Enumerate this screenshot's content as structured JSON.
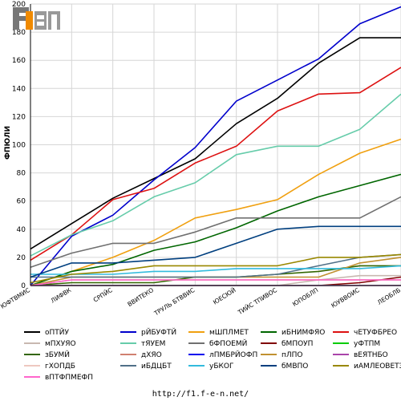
{
  "chart_data": {
    "type": "line",
    "title": "",
    "xlabel": "",
    "ylabel": "ФПЮЛИ",
    "ylim": [
      0,
      200
    ],
    "yticks": [
      0,
      20,
      40,
      60,
      80,
      100,
      120,
      140,
      160,
      180,
      200
    ],
    "grid": true,
    "legend_position": "bottom",
    "categories": [
      "ЮФТВМИС",
      "ЛИФВК",
      "СРПЙС",
      "ВВИТЕКО",
      "ТРУЛЬ БТВВИС",
      "ЮЕСЮЙ",
      "ТИЙС ТПИВОС",
      "ЮПОБЛП",
      "ЮУВВОИС",
      "ЛЕОБЛБ"
    ],
    "series": [
      {
        "name": "оПТЙУ",
        "color": "#000000",
        "values": [
          26,
          44,
          62,
          76,
          90,
          115,
          133,
          158,
          176,
          176
        ]
      },
      {
        "name": "рЙБУФТЙ",
        "color": "#0000cc",
        "values": [
          0,
          35,
          50,
          75,
          98,
          131,
          146,
          161,
          186,
          198
        ]
      },
      {
        "name": "мШПЛМЕТ",
        "color": "#f0a010",
        "values": [
          0,
          10,
          20,
          32,
          48,
          54,
          61,
          79,
          94,
          104
        ]
      },
      {
        "name": "иБНИМФЯО",
        "color": "#006600",
        "values": [
          0,
          10,
          15,
          25,
          31,
          41,
          53,
          63,
          71,
          79
        ]
      },
      {
        "name": "чЕТУФБРЕО",
        "color": "#dd1111",
        "values": [
          18,
          36,
          61,
          69,
          87,
          99,
          124,
          136,
          137,
          155
        ]
      },
      {
        "name": "мПХУЯО",
        "color": "#c8b8b0",
        "values": [
          0,
          0,
          0,
          0,
          0,
          0,
          0,
          4,
          7,
          7
        ]
      },
      {
        "name": "тЯУЕМ",
        "color": "#66ccaa",
        "values": [
          21,
          36,
          46,
          63,
          73,
          93,
          99,
          99,
          111,
          136
        ]
      },
      {
        "name": "бФПОЕМЙ",
        "color": "#707070",
        "values": [
          13,
          23,
          30,
          30,
          38,
          48,
          48,
          48,
          48,
          63
        ]
      },
      {
        "name": "бМПОУП",
        "color": "#800000",
        "values": [
          0,
          0,
          0,
          0,
          0,
          0,
          0,
          0,
          2,
          6
        ]
      },
      {
        "name": "уФТПМ",
        "color": "#00cc00",
        "values": [
          0,
          0,
          0,
          0,
          0,
          0,
          0,
          0,
          0,
          0
        ]
      },
      {
        "name": "зБУМЙ",
        "color": "#336600",
        "values": [
          0,
          2,
          2,
          2,
          6,
          6,
          8,
          10,
          14,
          14
        ]
      },
      {
        "name": "дХЯО",
        "color": "#d08070",
        "values": [
          0,
          4,
          4,
          4,
          4,
          4,
          4,
          4,
          4,
          4
        ]
      },
      {
        "name": "лПМБРЙОФП",
        "color": "#0000ee",
        "values": [
          0,
          0,
          0,
          0,
          0,
          0,
          0,
          0,
          0,
          0
        ]
      },
      {
        "name": "пЛПО",
        "color": "#c09030",
        "values": [
          0,
          6,
          6,
          6,
          6,
          6,
          6,
          6,
          16,
          20
        ]
      },
      {
        "name": "вЕЯТНБО",
        "color": "#aa44aa",
        "values": [
          0,
          0,
          0,
          0,
          0,
          0,
          0,
          0,
          0,
          0
        ]
      },
      {
        "name": "гХОПДБ",
        "color": "#eec8c0",
        "values": [
          0,
          0,
          0,
          0,
          0,
          0,
          0,
          0,
          0,
          0
        ]
      },
      {
        "name": "иБДЦБТ",
        "color": "#507088",
        "values": [
          6,
          6,
          6,
          6,
          6,
          6,
          8,
          14,
          20,
          22
        ]
      },
      {
        "name": "уБКОГ",
        "color": "#33bbdd",
        "values": [
          8,
          8,
          8,
          10,
          10,
          12,
          12,
          12,
          12,
          14
        ]
      },
      {
        "name": "бМВПО",
        "color": "#003f7f",
        "values": [
          6,
          16,
          16,
          18,
          20,
          30,
          40,
          42,
          42,
          42
        ]
      },
      {
        "name": "иАМЛЕОВЕТЗ",
        "color": "#998800",
        "values": [
          2,
          8,
          10,
          14,
          14,
          14,
          14,
          20,
          20,
          22
        ]
      },
      {
        "name": "вПТФПМЕФП",
        "color": "#ff66cc",
        "values": [
          0,
          4,
          4,
          4,
          4,
          4,
          4,
          4,
          4,
          4
        ]
      }
    ]
  },
  "logo": {
    "text": "F1 EN"
  },
  "footer": {
    "url": "http://f1.f-e-n.net/"
  }
}
